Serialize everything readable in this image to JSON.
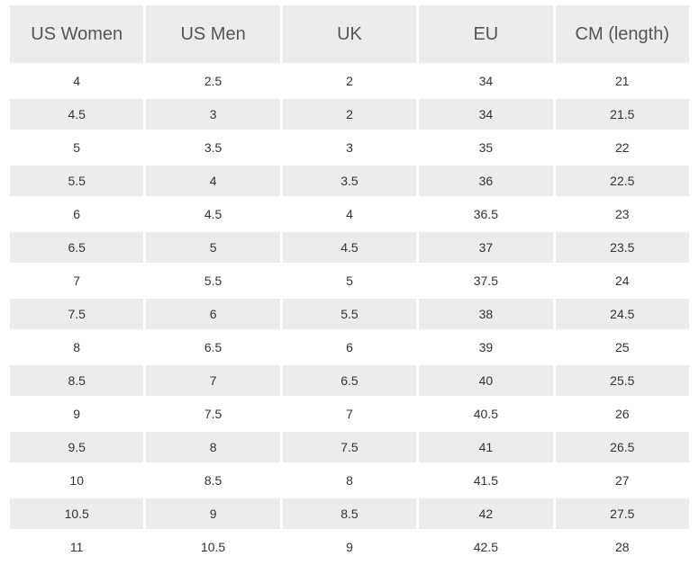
{
  "table": {
    "headers": [
      "US Women",
      "US Men",
      "UK",
      "EU",
      "CM (length)"
    ],
    "rows": [
      [
        "4",
        "2.5",
        "2",
        "34",
        "21"
      ],
      [
        "4.5",
        "3",
        "2",
        "34",
        "21.5"
      ],
      [
        "5",
        "3.5",
        "3",
        "35",
        "22"
      ],
      [
        "5.5",
        "4",
        "3.5",
        "36",
        "22.5"
      ],
      [
        "6",
        "4.5",
        "4",
        "36.5",
        "23"
      ],
      [
        "6.5",
        "5",
        "4.5",
        "37",
        "23.5"
      ],
      [
        "7",
        "5.5",
        "5",
        "37.5",
        "24"
      ],
      [
        "7.5",
        "6",
        "5.5",
        "38",
        "24.5"
      ],
      [
        "8",
        "6.5",
        "6",
        "39",
        "25"
      ],
      [
        "8.5",
        "7",
        "6.5",
        "40",
        "25.5"
      ],
      [
        "9",
        "7.5",
        "7",
        "40.5",
        "26"
      ],
      [
        "9.5",
        "8",
        "7.5",
        "41",
        "26.5"
      ],
      [
        "10",
        "8.5",
        "8",
        "41.5",
        "27"
      ],
      [
        "10.5",
        "9",
        "8.5",
        "42",
        "27.5"
      ],
      [
        "11",
        "10.5",
        "9",
        "42.5",
        "28"
      ]
    ]
  },
  "colors": {
    "header_bg": "#ececec",
    "stripe_bg": "#ececec",
    "row_bg": "#ffffff",
    "header_text": "#555555",
    "cell_text": "#333333"
  }
}
